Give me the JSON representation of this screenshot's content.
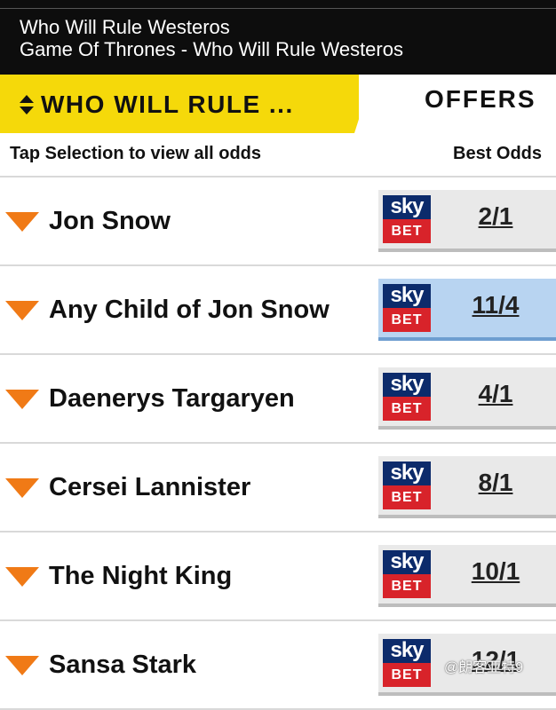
{
  "header": {
    "title": "Who Will Rule Westeros",
    "subtitle": "Game Of Thrones - Who Will Rule Westeros"
  },
  "tabs": {
    "market_label": "WHO WILL RULE ...",
    "offers_label": "OFFERS"
  },
  "table_header": {
    "instruction": "Tap Selection to view all odds",
    "best_odds": "Best Odds"
  },
  "bookmaker": {
    "sky": "sky",
    "bet": "BET"
  },
  "selections": [
    {
      "name": "Jon Snow",
      "odds": "2/1"
    },
    {
      "name": "Any Child of Jon Snow",
      "odds": "11/4"
    },
    {
      "name": "Daenerys Targaryen",
      "odds": "4/1"
    },
    {
      "name": "Cersei Lannister",
      "odds": "8/1"
    },
    {
      "name": "The Night King",
      "odds": "10/1"
    },
    {
      "name": "Sansa Stark",
      "odds": "12/1"
    }
  ],
  "watermark": "@朗客亚特9",
  "colors": {
    "accent_yellow": "#f5d90a",
    "arrow_orange": "#f07a16",
    "highlight_blue": "#b8d4f1",
    "sky_navy": "#0c2b6b",
    "sky_red": "#d8232a"
  }
}
